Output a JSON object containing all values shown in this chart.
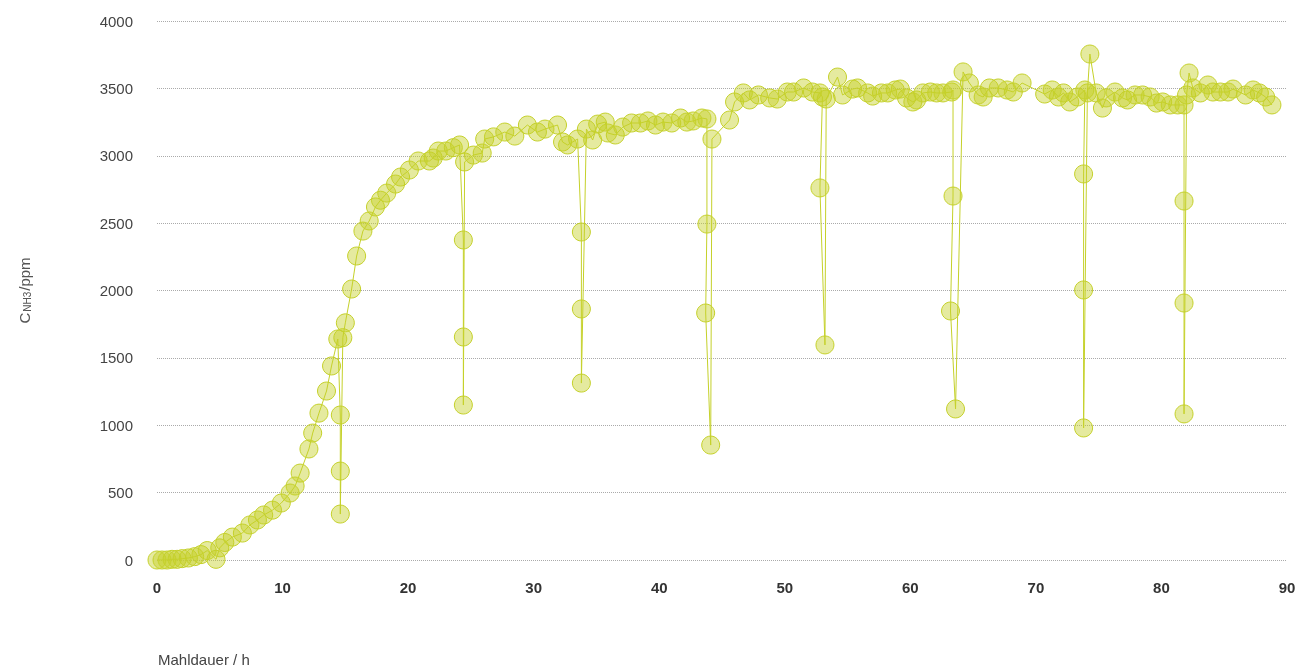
{
  "chart_data": {
    "type": "line",
    "xlabel": "Mahldauer / h",
    "ylabel": "C$_{NH3}$/ppm",
    "x": [
      0,
      0.4,
      0.8,
      1.2,
      1.6,
      2.0,
      2.5,
      3.0,
      3.5,
      4.0,
      4.7,
      5.0,
      5.4,
      6.0,
      6.8,
      7.4,
      8.0,
      8.5,
      9.2,
      9.9,
      10.6,
      11.0,
      11.4,
      12.1,
      12.4,
      12.9,
      13.5,
      13.9,
      14.4,
      14.6,
      14.6,
      14.6,
      14.8,
      15.0,
      15.5,
      15.9,
      16.4,
      16.9,
      17.4,
      17.8,
      18.3,
      19.0,
      19.4,
      20.1,
      20.8,
      21.7,
      22.0,
      22.4,
      23.0,
      23.6,
      24.1,
      24.4,
      24.4,
      24.4,
      24.5,
      25.2,
      25.9,
      26.1,
      26.8,
      27.7,
      28.5,
      29.5,
      30.3,
      30.9,
      31.9,
      32.3,
      32.7,
      33.5,
      33.8,
      33.8,
      33.8,
      34.2,
      34.7,
      35.1,
      35.7,
      35.9,
      36.5,
      37.1,
      37.8,
      38.5,
      39.1,
      39.7,
      40.3,
      41.0,
      41.7,
      42.2,
      42.7,
      43.4,
      43.8,
      43.8,
      43.7,
      44.1,
      44.2,
      45.6,
      46.0,
      46.7,
      47.2,
      47.9,
      48.8,
      49.4,
      50.2,
      50.7,
      51.5,
      52.2,
      52.8,
      53.0,
      52.8,
      53.2,
      53.3,
      54.2,
      54.6,
      55.4,
      55.8,
      56.6,
      57.0,
      57.7,
      58.2,
      58.8,
      59.2,
      59.7,
      60.2,
      60.5,
      61.0,
      61.6,
      62.1,
      62.6,
      63.3,
      63.4,
      63.4,
      63.2,
      63.6,
      64.2,
      64.7,
      65.4,
      65.8,
      66.3,
      67.0,
      67.7,
      68.2,
      68.9,
      70.7,
      71.3,
      71.8,
      72.2,
      72.7,
      73.3,
      73.9,
      73.8,
      73.8,
      73.8,
      74.1,
      74.3,
      74.8,
      75.3,
      75.6,
      76.3,
      76.9,
      77.3,
      77.9,
      78.5,
      79.1,
      79.6,
      80.1,
      80.7,
      81.3,
      81.8,
      81.8,
      81.8,
      81.8,
      82.0,
      82.2,
      82.5,
      83.1,
      83.7,
      84.1,
      84.7,
      85.3,
      85.7,
      86.7,
      87.3,
      87.8,
      88.3,
      88.8
    ],
    "series": [
      {
        "color": "#c5d12a",
        "values": [
          0,
          0,
          0,
          5,
          5,
          10,
          15,
          25,
          40,
          70,
          5,
          90,
          130,
          170,
          200,
          260,
          297,
          334,
          370,
          423,
          497,
          549,
          645,
          824,
          942,
          1090,
          1254,
          1440,
          1640,
          1076,
          660,
          341,
          1650,
          1760,
          2011,
          2256,
          2441,
          2516,
          2620,
          2670,
          2723,
          2790,
          2842,
          2894,
          2961,
          2961,
          2983,
          3035,
          3035,
          3060,
          3080,
          2375,
          1655,
          1150,
          2954,
          3005,
          3020,
          3124,
          3140,
          3176,
          3146,
          3228,
          3176,
          3198,
          3228,
          3102,
          3080,
          3124,
          2434,
          1863,
          1313,
          3198,
          3117,
          3235,
          3250,
          3169,
          3154,
          3213,
          3243,
          3243,
          3258,
          3228,
          3250,
          3243,
          3280,
          3250,
          3258,
          3280,
          3273,
          2493,
          1833,
          853,
          3124,
          3265,
          3399,
          3466,
          3414,
          3451,
          3429,
          3421,
          3473,
          3473,
          3503,
          3473,
          3466,
          3436,
          2761,
          1596,
          3421,
          3584,
          3451,
          3495,
          3503,
          3466,
          3443,
          3466,
          3466,
          3488,
          3495,
          3429,
          3399,
          3414,
          3466,
          3473,
          3466,
          3466,
          3473,
          3488,
          2701,
          1848,
          1121,
          3622,
          3540,
          3451,
          3436,
          3503,
          3503,
          3488,
          3473,
          3540,
          3458,
          3488,
          3436,
          3466,
          3399,
          3436,
          3488,
          2865,
          2004,
          980,
          3466,
          3755,
          3466,
          3354,
          3429,
          3473,
          3429,
          3414,
          3451,
          3451,
          3436,
          3391,
          3399,
          3377,
          3377,
          3377,
          2664,
          1907,
          1084,
          3451,
          3614,
          3503,
          3466,
          3525,
          3473,
          3473,
          3473,
          3495,
          3451,
          3488,
          3466,
          3436,
          3377
        ]
      }
    ],
    "xlim": [
      0,
      90
    ],
    "xticks": [
      0,
      10,
      20,
      30,
      40,
      50,
      60,
      70,
      80,
      90
    ],
    "ylim": [
      0,
      4000
    ],
    "yticks": [
      0,
      500,
      1000,
      1500,
      2000,
      2500,
      3000,
      3500,
      4000
    ],
    "grid": "y",
    "marker": "circle",
    "line_style": "solid"
  }
}
